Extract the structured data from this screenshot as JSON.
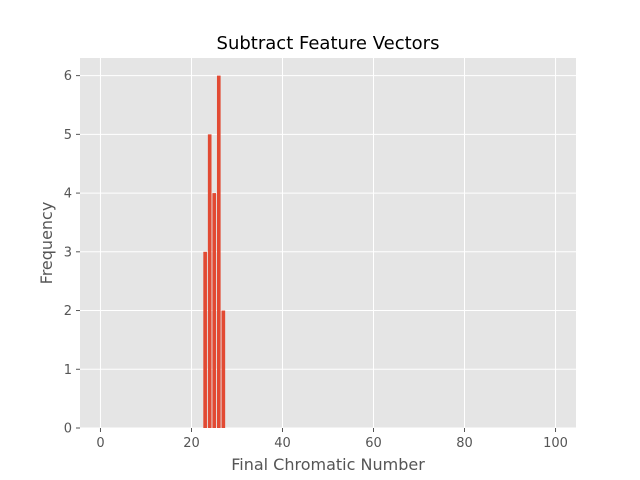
{
  "chart_data": {
    "type": "bar",
    "title": "Subtract Feature Vectors",
    "xlabel": "Final Chromatic Number",
    "ylabel": "Frequency",
    "x": [
      23,
      24,
      25,
      26,
      27
    ],
    "values": [
      3,
      5,
      4,
      6,
      2
    ],
    "xlim": [
      -4.5,
      104.5
    ],
    "ylim": [
      0,
      6.3
    ],
    "xticks": [
      0,
      20,
      40,
      60,
      80,
      100
    ],
    "yticks": [
      0,
      1,
      2,
      3,
      4,
      5,
      6
    ],
    "grid": true,
    "bar_color": "#E24A33",
    "background_color": "#E5E5E5",
    "grid_color": "#FFFFFF"
  }
}
